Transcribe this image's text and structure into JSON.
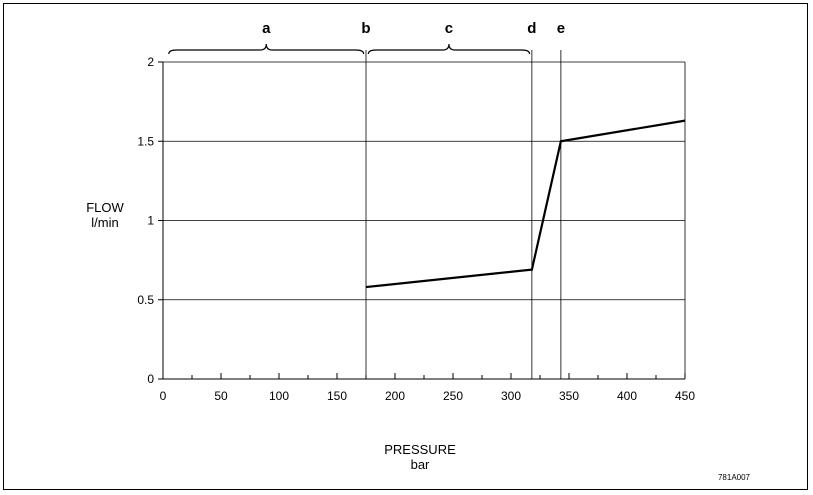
{
  "chart_data": {
    "type": "line",
    "xlabel": "PRESSURE",
    "xunit": "bar",
    "ylabel": "FLOW",
    "yunit": "l/min",
    "xlim": [
      0,
      450
    ],
    "ylim": [
      0,
      2
    ],
    "x_ticks": [
      0,
      50,
      100,
      150,
      200,
      250,
      300,
      350,
      400,
      450
    ],
    "y_ticks": [
      0,
      0.5,
      1,
      1.5,
      2
    ],
    "y_tick_labels": [
      "0",
      "0.5",
      "1",
      "1.5",
      "2"
    ],
    "grid": "horizontal",
    "series": [
      {
        "points": [
          {
            "x": 175,
            "y": 0.58
          },
          {
            "x": 318,
            "y": 0.69
          },
          {
            "x": 343,
            "y": 1.5
          },
          {
            "x": 450,
            "y": 1.63
          }
        ]
      }
    ],
    "zones": [
      {
        "label": "a",
        "from": 5,
        "to": 173
      },
      {
        "label": "c",
        "from": 177,
        "to": 316
      }
    ],
    "markers": [
      {
        "label": "b",
        "x": 175
      },
      {
        "label": "d",
        "x": 318
      },
      {
        "label": "e",
        "x": 343
      }
    ],
    "figure_code": "781A007"
  }
}
